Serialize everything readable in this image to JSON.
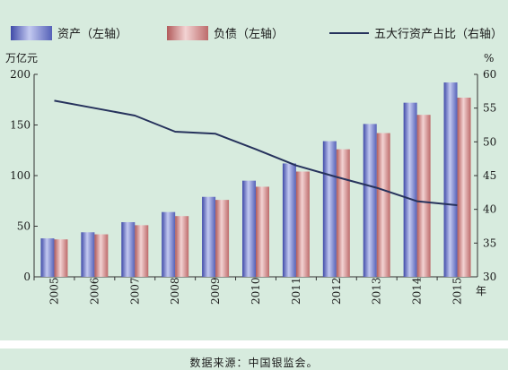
{
  "chart_data": {
    "type": "bar",
    "categories": [
      "2005",
      "2006",
      "2007",
      "2008",
      "2009",
      "2010",
      "2011",
      "2012",
      "2013",
      "2014",
      "2015"
    ],
    "series": [
      {
        "name": "资产（左轴）",
        "axis": "left",
        "type": "bar",
        "color": "#6a78c4",
        "values": [
          38,
          44,
          54,
          64,
          79,
          95,
          112,
          134,
          151,
          172,
          192
        ]
      },
      {
        "name": "负债（左轴）",
        "axis": "left",
        "type": "bar",
        "color": "#c98484",
        "values": [
          37,
          42,
          51,
          60,
          76,
          89,
          104,
          126,
          142,
          160,
          177
        ]
      },
      {
        "name": "五大行资产占比（右轴）",
        "axis": "right",
        "type": "line",
        "color": "#26325c",
        "values": [
          56.1,
          55.0,
          53.9,
          51.5,
          51.2,
          48.9,
          46.5,
          44.8,
          43.2,
          41.2,
          40.6
        ]
      }
    ],
    "y_left": {
      "label": "万亿元",
      "ylim": [
        0,
        200
      ],
      "ticks": [
        0,
        50,
        100,
        150,
        200
      ]
    },
    "y_right": {
      "label": "%",
      "ylim": [
        30,
        60
      ],
      "ticks": [
        30,
        35,
        40,
        45,
        50,
        55,
        60
      ]
    },
    "x_unit": "年",
    "legend_position": "top",
    "grid": false
  },
  "footer": {
    "source": "数据来源：中国银监会。"
  }
}
